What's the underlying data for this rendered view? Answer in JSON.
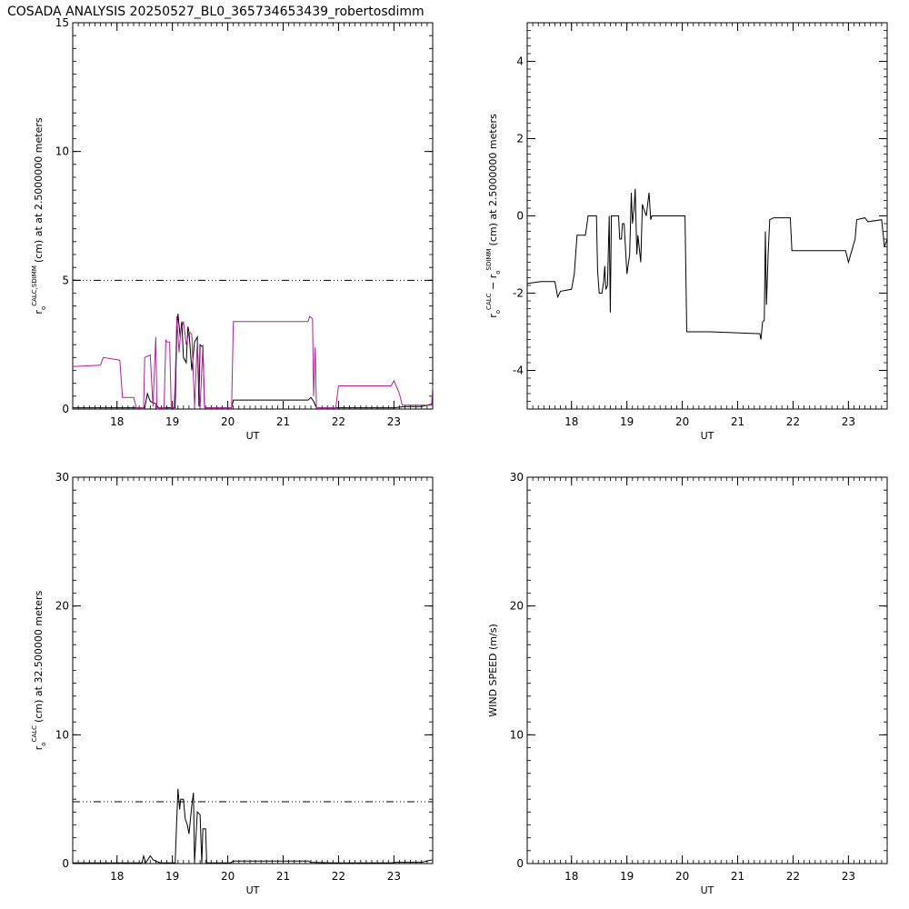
{
  "title": "COSADA ANALYSIS 20250527_BL0_365734653439_robertosdimm",
  "colors": {
    "series_a": "#000000",
    "series_b": "#b0209a",
    "reference": "#000000"
  },
  "chart_data": [
    {
      "type": "line",
      "xlabel": "UT",
      "ylabel": {
        "main": "r",
        "sub": "o",
        "sup": "CALC,SDIMM",
        "rest": "(cm)  at  at 2.5000000 meters"
      },
      "xlim": [
        17.2,
        23.7
      ],
      "ylim": [
        0,
        15
      ],
      "xticks": [
        "18",
        "19",
        "20",
        "21",
        "22",
        "23"
      ],
      "yticks": [
        "0",
        "5",
        "10",
        "15"
      ],
      "reference_line": {
        "y": 5
      },
      "series": [
        {
          "color": "#000000",
          "points": [
            [
              17.2,
              0.05
            ],
            [
              17.95,
              0.05
            ],
            [
              18.0,
              0.05
            ],
            [
              18.5,
              0.05
            ],
            [
              18.55,
              0.6
            ],
            [
              18.6,
              0.3
            ],
            [
              18.7,
              0.2
            ],
            [
              18.75,
              0.05
            ],
            [
              19.05,
              0.05
            ],
            [
              19.08,
              3.0
            ],
            [
              19.1,
              3.7
            ],
            [
              19.14,
              2.8
            ],
            [
              19.17,
              3.4
            ],
            [
              19.2,
              2.0
            ],
            [
              19.25,
              1.8
            ],
            [
              19.28,
              3.2
            ],
            [
              19.3,
              3.0
            ],
            [
              19.35,
              1.5
            ],
            [
              19.4,
              2.6
            ],
            [
              19.45,
              2.8
            ],
            [
              19.48,
              0.1
            ],
            [
              19.5,
              2.5
            ],
            [
              19.55,
              2.4
            ],
            [
              19.58,
              0.05
            ],
            [
              20.07,
              0.05
            ],
            [
              20.1,
              0.35
            ],
            [
              21.45,
              0.35
            ],
            [
              21.5,
              0.45
            ],
            [
              21.55,
              0.3
            ],
            [
              21.6,
              0.05
            ],
            [
              21.85,
              0.05
            ],
            [
              21.95,
              0.05
            ],
            [
              23.0,
              0.05
            ],
            [
              23.2,
              0.1
            ],
            [
              23.5,
              0.1
            ],
            [
              23.7,
              0.2
            ]
          ]
        },
        {
          "color": "#b0209a",
          "points": [
            [
              17.2,
              1.65
            ],
            [
              17.7,
              1.7
            ],
            [
              17.75,
              2.0
            ],
            [
              18.05,
              1.9
            ],
            [
              18.1,
              0.45
            ],
            [
              18.3,
              0.45
            ],
            [
              18.35,
              0.05
            ],
            [
              18.48,
              0.05
            ],
            [
              18.5,
              2.0
            ],
            [
              18.6,
              2.1
            ],
            [
              18.65,
              0.1
            ],
            [
              18.7,
              2.8
            ],
            [
              18.72,
              0.05
            ],
            [
              18.85,
              0.05
            ],
            [
              18.88,
              2.7
            ],
            [
              18.9,
              2.6
            ],
            [
              18.95,
              2.6
            ],
            [
              18.98,
              0.05
            ],
            [
              19.03,
              0.05
            ],
            [
              19.05,
              1.0
            ],
            [
              19.08,
              3.6
            ],
            [
              19.12,
              2.2
            ],
            [
              19.15,
              3.0
            ],
            [
              19.2,
              3.4
            ],
            [
              19.25,
              2.5
            ],
            [
              19.3,
              3.0
            ],
            [
              19.35,
              2.9
            ],
            [
              19.4,
              0.1
            ],
            [
              19.45,
              2.6
            ],
            [
              19.5,
              0.05
            ],
            [
              19.55,
              2.5
            ],
            [
              19.58,
              0.05
            ],
            [
              20.07,
              0.05
            ],
            [
              20.1,
              3.4
            ],
            [
              21.45,
              3.4
            ],
            [
              21.48,
              3.6
            ],
            [
              21.53,
              3.5
            ],
            [
              21.55,
              0.5
            ],
            [
              21.58,
              2.4
            ],
            [
              21.6,
              0.05
            ],
            [
              21.95,
              0.05
            ],
            [
              22.0,
              0.9
            ],
            [
              22.95,
              0.9
            ],
            [
              23.0,
              1.1
            ],
            [
              23.1,
              0.6
            ],
            [
              23.15,
              0.15
            ],
            [
              23.68,
              0.15
            ],
            [
              23.7,
              0.9
            ]
          ]
        }
      ]
    },
    {
      "type": "line",
      "xlabel": "UT",
      "ylabel": {
        "main": "r",
        "sub": "o",
        "sup": "CALC",
        "mid": " − r",
        "sub2": "o",
        "sup2": "SDIMM",
        "rest": "(cm) at 2.5000000 meters"
      },
      "xlim": [
        17.2,
        23.7
      ],
      "ylim": [
        -5,
        5
      ],
      "xticks": [
        "18",
        "19",
        "20",
        "21",
        "22",
        "23"
      ],
      "yticks": [
        "-4",
        "-2",
        "0",
        "2",
        "4"
      ],
      "series": [
        {
          "color": "#000000",
          "points": [
            [
              17.2,
              -1.75
            ],
            [
              17.45,
              -1.7
            ],
            [
              17.7,
              -1.7
            ],
            [
              17.75,
              -2.1
            ],
            [
              17.8,
              -1.95
            ],
            [
              18.0,
              -1.9
            ],
            [
              18.05,
              -1.5
            ],
            [
              18.1,
              -0.5
            ],
            [
              18.25,
              -0.5
            ],
            [
              18.3,
              0.0
            ],
            [
              18.45,
              0.0
            ],
            [
              18.47,
              -1.4
            ],
            [
              18.5,
              -2.0
            ],
            [
              18.55,
              -2.0
            ],
            [
              18.58,
              -1.7
            ],
            [
              18.6,
              -1.3
            ],
            [
              18.62,
              -1.9
            ],
            [
              18.65,
              -1.8
            ],
            [
              18.68,
              0.0
            ],
            [
              18.7,
              -2.5
            ],
            [
              18.72,
              0.0
            ],
            [
              18.85,
              0.0
            ],
            [
              18.87,
              -0.6
            ],
            [
              18.9,
              -0.6
            ],
            [
              18.92,
              -0.2
            ],
            [
              18.95,
              -0.2
            ],
            [
              19.0,
              -1.5
            ],
            [
              19.05,
              -1.0
            ],
            [
              19.08,
              0.6
            ],
            [
              19.1,
              -0.2
            ],
            [
              19.13,
              0.2
            ],
            [
              19.15,
              0.7
            ],
            [
              19.18,
              -1.0
            ],
            [
              19.2,
              -0.5
            ],
            [
              19.25,
              -1.2
            ],
            [
              19.28,
              0.3
            ],
            [
              19.3,
              0.2
            ],
            [
              19.35,
              0.0
            ],
            [
              19.4,
              0.6
            ],
            [
              19.43,
              -0.1
            ],
            [
              19.45,
              0.0
            ],
            [
              20.05,
              0.0
            ],
            [
              20.08,
              -3.0
            ],
            [
              20.5,
              -3.0
            ],
            [
              21.4,
              -3.05
            ],
            [
              21.42,
              -3.2
            ],
            [
              21.45,
              -2.75
            ],
            [
              21.48,
              -2.7
            ],
            [
              21.5,
              -0.4
            ],
            [
              21.52,
              -2.3
            ],
            [
              21.55,
              -1.0
            ],
            [
              21.58,
              -0.1
            ],
            [
              21.65,
              -0.05
            ],
            [
              21.95,
              -0.05
            ],
            [
              21.98,
              -0.9
            ],
            [
              22.95,
              -0.9
            ],
            [
              23.0,
              -1.2
            ],
            [
              23.12,
              -0.6
            ],
            [
              23.15,
              -0.1
            ],
            [
              23.3,
              -0.05
            ],
            [
              23.35,
              -0.15
            ],
            [
              23.6,
              -0.1
            ],
            [
              23.65,
              -0.8
            ],
            [
              23.7,
              -0.6
            ]
          ]
        }
      ]
    },
    {
      "type": "line",
      "xlabel": "UT",
      "ylabel": {
        "main": "r",
        "sub": "o",
        "sup": "CALC",
        "rest": "(cm) at 32.500000 meters"
      },
      "xlim": [
        17.2,
        23.7
      ],
      "ylim": [
        0,
        30
      ],
      "xticks": [
        "18",
        "19",
        "20",
        "21",
        "22",
        "23"
      ],
      "yticks": [
        "0",
        "10",
        "20",
        "30"
      ],
      "reference_line": {
        "y": 4.8
      },
      "series": [
        {
          "color": "#000000",
          "points": [
            [
              17.2,
              0.05
            ],
            [
              18.45,
              0.05
            ],
            [
              18.48,
              0.6
            ],
            [
              18.52,
              0.05
            ],
            [
              18.6,
              0.6
            ],
            [
              18.65,
              0.3
            ],
            [
              18.75,
              0.1
            ],
            [
              18.8,
              0.05
            ],
            [
              19.05,
              0.05
            ],
            [
              19.08,
              3.5
            ],
            [
              19.1,
              5.8
            ],
            [
              19.13,
              4.2
            ],
            [
              19.15,
              5.0
            ],
            [
              19.2,
              5.0
            ],
            [
              19.23,
              3.5
            ],
            [
              19.27,
              3.0
            ],
            [
              19.3,
              2.3
            ],
            [
              19.35,
              4.5
            ],
            [
              19.38,
              5.5
            ],
            [
              19.4,
              0.05
            ],
            [
              19.45,
              4.0
            ],
            [
              19.5,
              3.8
            ],
            [
              19.53,
              0.05
            ],
            [
              19.55,
              2.7
            ],
            [
              19.6,
              2.7
            ],
            [
              19.62,
              0.05
            ],
            [
              20.05,
              0.05
            ],
            [
              20.1,
              0.2
            ],
            [
              21.45,
              0.2
            ],
            [
              21.5,
              0.1
            ],
            [
              21.9,
              0.05
            ],
            [
              22.95,
              0.05
            ],
            [
              23.05,
              0.1
            ],
            [
              23.5,
              0.1
            ],
            [
              23.7,
              0.3
            ]
          ]
        }
      ]
    },
    {
      "type": "line",
      "xlabel": "UT",
      "ylabel": {
        "main": "WIND SPEED (m/s)"
      },
      "xlim": [
        17.2,
        23.7
      ],
      "ylim": [
        0,
        30
      ],
      "xticks": [
        "18",
        "19",
        "20",
        "21",
        "22",
        "23"
      ],
      "yticks": [
        "0",
        "10",
        "20",
        "30"
      ],
      "series": []
    }
  ]
}
